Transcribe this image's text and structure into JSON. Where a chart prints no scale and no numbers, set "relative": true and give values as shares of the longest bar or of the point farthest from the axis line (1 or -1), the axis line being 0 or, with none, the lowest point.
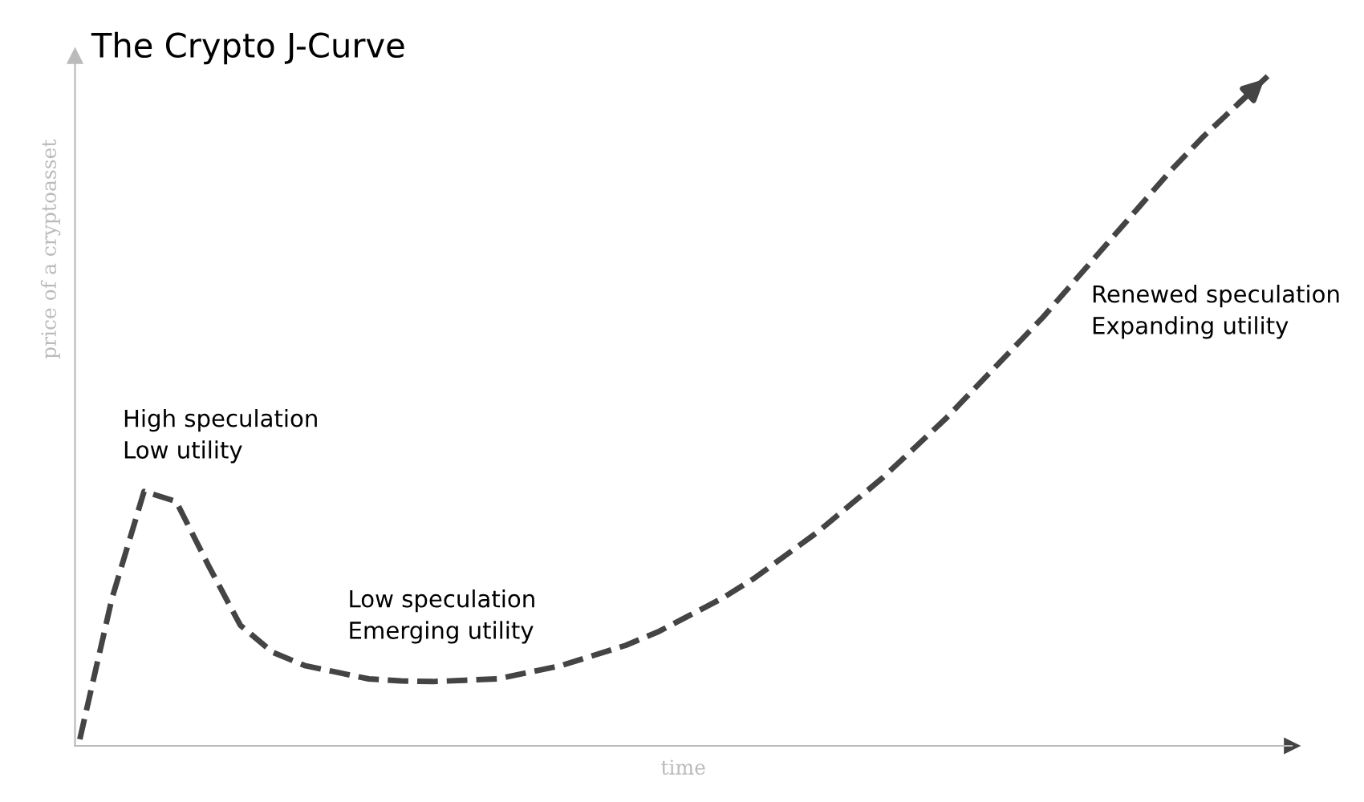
{
  "chart_data": {
    "type": "line",
    "title": "The Crypto J-Curve",
    "xlabel": "time",
    "ylabel": "price of a cryptoasset",
    "relative": true,
    "line_style": "dashed",
    "marker": "none",
    "legend": false,
    "categories": [
      null,
      null,
      null,
      null,
      null,
      null,
      null,
      null,
      null,
      null,
      null,
      null,
      null,
      null,
      null,
      null,
      null,
      null,
      null,
      null,
      null,
      null,
      null,
      null,
      null,
      null,
      null,
      null,
      null,
      null,
      null,
      null,
      null,
      null,
      null,
      null,
      null,
      null
    ],
    "series": [
      {
        "color": "#444444",
        "values": [
          0.01,
          0.22,
          0.38,
          0.365,
          0.27,
          0.18,
          0.14,
          0.12,
          0.11,
          0.1,
          0.097,
          0.096,
          0.098,
          0.1,
          0.11,
          0.12,
          0.135,
          0.15,
          0.17,
          0.195,
          0.22,
          0.25,
          0.285,
          0.32,
          0.36,
          0.4,
          0.445,
          0.49,
          0.54,
          0.59,
          0.64,
          0.695,
          0.75,
          0.805,
          0.86,
          0.91,
          0.955,
          1.0
        ]
      }
    ],
    "annotations": [
      "High speculation\nLow utility",
      "Low speculation\nEmerging utility",
      "Renewed speculation\nExpanding utility"
    ]
  }
}
